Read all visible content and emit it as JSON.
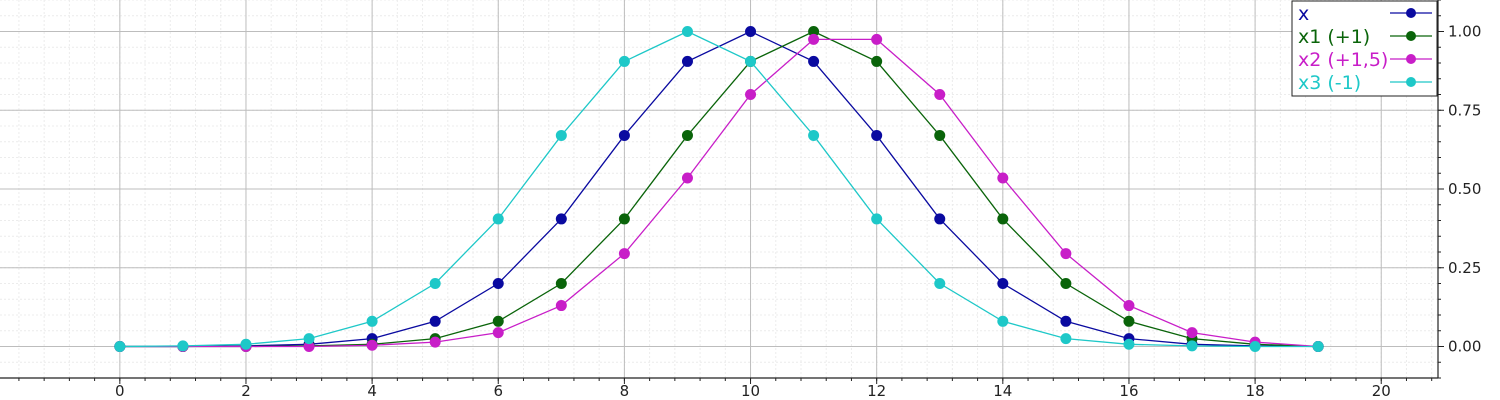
{
  "chart_data": {
    "type": "line",
    "title": "",
    "xlabel": "",
    "ylabel": "",
    "xlim": [
      -1.9,
      20.9
    ],
    "ylim": [
      -0.1,
      1.1
    ],
    "x_ticks": [
      0,
      2,
      4,
      6,
      8,
      10,
      12,
      14,
      16,
      18,
      20
    ],
    "x_tick_labels": [
      "0",
      "2",
      "4",
      "6",
      "8",
      "10",
      "12",
      "14",
      "16",
      "18",
      "20"
    ],
    "y_ticks": [
      0,
      0.25,
      0.5,
      0.75,
      1.0
    ],
    "y_tick_labels": [
      "0.00",
      "0.25",
      "0.50",
      "0.75",
      "1.00"
    ],
    "grid": true,
    "legend_position": "top-right",
    "y_axis_side": "right",
    "series": [
      {
        "name": "x",
        "color": "#0a0aa0",
        "x": [
          0,
          1,
          2,
          3,
          4,
          5,
          6,
          7,
          8,
          9,
          10,
          11,
          12,
          13,
          14,
          15,
          16,
          17,
          18,
          19
        ],
        "values": [
          0.0,
          0.0,
          0.002,
          0.007,
          0.025,
          0.08,
          0.2,
          0.405,
          0.67,
          0.905,
          1.0,
          0.905,
          0.67,
          0.405,
          0.2,
          0.08,
          0.025,
          0.007,
          0.002,
          0.0
        ]
      },
      {
        "name": "x1 (+1)",
        "color": "#0a640a",
        "x": [
          0,
          1,
          2,
          3,
          4,
          5,
          6,
          7,
          8,
          9,
          10,
          11,
          12,
          13,
          14,
          15,
          16,
          17,
          18,
          19
        ],
        "values": [
          0.0,
          0.0,
          0.0,
          0.002,
          0.007,
          0.025,
          0.08,
          0.2,
          0.405,
          0.67,
          0.905,
          1.0,
          0.905,
          0.67,
          0.405,
          0.2,
          0.08,
          0.025,
          0.007,
          0.0
        ]
      },
      {
        "name": "x2 (+1,5)",
        "color": "#c81ec8",
        "x": [
          0,
          1,
          2,
          3,
          4,
          5,
          6,
          7,
          8,
          9,
          10,
          11,
          12,
          13,
          14,
          15,
          16,
          17,
          18,
          19
        ],
        "values": [
          0.0,
          0.0,
          0.0,
          0.0,
          0.004,
          0.014,
          0.044,
          0.13,
          0.295,
          0.535,
          0.8,
          0.975,
          0.975,
          0.8,
          0.535,
          0.295,
          0.13,
          0.044,
          0.014,
          0.0
        ]
      },
      {
        "name": "x3 (-1)",
        "color": "#1ec8c8",
        "x": [
          0,
          1,
          2,
          3,
          4,
          5,
          6,
          7,
          8,
          9,
          10,
          11,
          12,
          13,
          14,
          15,
          16,
          17,
          18,
          19
        ],
        "values": [
          0.0,
          0.002,
          0.007,
          0.025,
          0.08,
          0.2,
          0.405,
          0.67,
          0.905,
          1.0,
          0.905,
          0.67,
          0.405,
          0.2,
          0.08,
          0.025,
          0.007,
          0.002,
          0.0,
          0.0
        ]
      }
    ]
  }
}
